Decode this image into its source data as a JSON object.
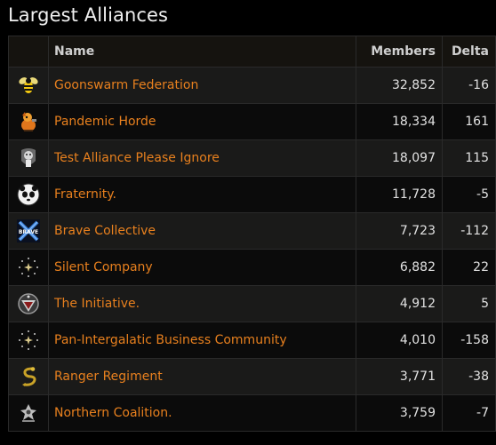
{
  "title": "Largest Alliances",
  "columns": {
    "name": "Name",
    "members": "Members",
    "delta": "Delta"
  },
  "alliances": [
    {
      "name": "Goonswarm Federation",
      "members": "32,852",
      "delta": "-16",
      "icon": "bee-icon"
    },
    {
      "name": "Pandemic Horde",
      "members": "18,334",
      "delta": "161",
      "icon": "horde-mascot-icon"
    },
    {
      "name": "Test Alliance Please Ignore",
      "members": "18,097",
      "delta": "115",
      "icon": "test-alliance-icon"
    },
    {
      "name": "Fraternity.",
      "members": "11,728",
      "delta": "-5",
      "icon": "panda-icon"
    },
    {
      "name": "Brave Collective",
      "members": "7,723",
      "delta": "-112",
      "icon": "brave-logo-icon",
      "logo_text": "BRAVE"
    },
    {
      "name": "Silent Company",
      "members": "6,882",
      "delta": "22",
      "icon": "star-ring-icon"
    },
    {
      "name": "The Initiative.",
      "members": "4,912",
      "delta": "5",
      "icon": "initiative-emblem-icon"
    },
    {
      "name": "Pan-Intergalatic Business Community",
      "members": "4,010",
      "delta": "-158",
      "icon": "star-ring-icon"
    },
    {
      "name": "Ranger Regiment",
      "members": "3,771",
      "delta": "-38",
      "icon": "serpent-icon"
    },
    {
      "name": "Northern Coalition.",
      "members": "3,759",
      "delta": "-7",
      "icon": "northern-emblem-icon"
    }
  ],
  "colors": {
    "link": "#e8801e",
    "background": "#000000",
    "row_odd": "#1a1a19",
    "row_even": "#0b0b0b",
    "header": "#15130f"
  }
}
